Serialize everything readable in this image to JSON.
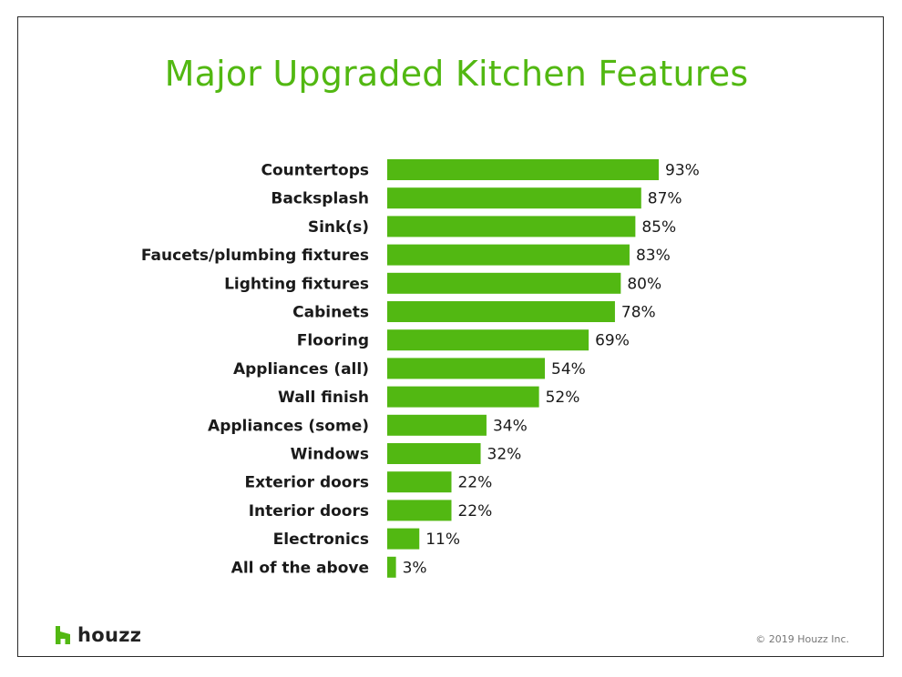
{
  "title": "Major Upgraded Kitchen Features",
  "brand": {
    "name": "houzz",
    "icon": "houzz-logo-icon",
    "color": "#52b812"
  },
  "copyright": "© 2019 Houzz Inc.",
  "colors": {
    "bar": "#52b812",
    "title": "#52b812"
  },
  "chart_data": {
    "type": "bar",
    "orientation": "horizontal",
    "title": "Major Upgraded Kitchen Features",
    "xlabel": "",
    "ylabel": "",
    "xlim": [
      0,
      100
    ],
    "grid": false,
    "value_suffix": "%",
    "categories": [
      "Countertops",
      "Backsplash",
      "Sink(s)",
      "Faucets/plumbing fixtures",
      "Lighting fixtures",
      "Cabinets",
      "Flooring",
      "Appliances (all)",
      "Wall finish",
      "Appliances (some)",
      "Windows",
      "Exterior doors",
      "Interior doors",
      "Electronics",
      "All of the above"
    ],
    "values": [
      93,
      87,
      85,
      83,
      80,
      78,
      69,
      54,
      52,
      34,
      32,
      22,
      22,
      11,
      3
    ],
    "value_labels": [
      "93%",
      "87%",
      "85%",
      "83%",
      "80%",
      "78%",
      "69%",
      "54%",
      "52%",
      "34%",
      "32%",
      "22%",
      "22%",
      "11%",
      "3%"
    ]
  }
}
